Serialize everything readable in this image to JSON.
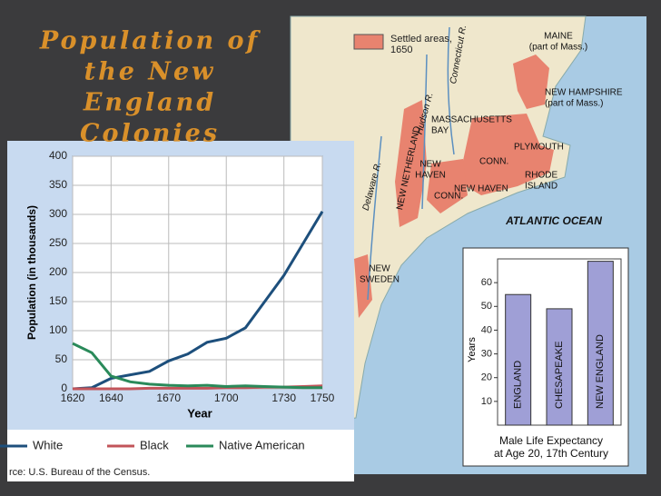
{
  "slide": {
    "title": [
      "Population of",
      "the New",
      "England",
      "Colonies"
    ]
  },
  "map": {
    "legend": [
      "Settled areas,",
      "1650"
    ],
    "labels": [
      [
        "MAINE",
        "(part of Mass.)"
      ],
      [
        "NEW HAMPSHIRE",
        "(part of Mass.)"
      ],
      [
        "MASSACHUSETTS",
        "BAY"
      ],
      [
        "PLYMOUTH"
      ],
      [
        "CONN."
      ],
      [
        "RHODE",
        "ISLAND"
      ],
      [
        "NEW",
        "HAVEN"
      ],
      [
        "NEW HAVEN"
      ],
      [
        "CONN."
      ],
      [
        "NEW NETHERLAND"
      ],
      [
        "Hudson R."
      ],
      [
        "Connecticut R."
      ],
      [
        "Delaware R."
      ],
      [
        "ATLANTIC OCEAN"
      ],
      [
        "NEW",
        "SWEDEN"
      ]
    ]
  },
  "chart_data": [
    {
      "type": "line",
      "x_label": "Year",
      "y_label": "Population (in thousands)",
      "x": [
        1620,
        1630,
        1640,
        1650,
        1660,
        1670,
        1680,
        1690,
        1700,
        1710,
        1720,
        1730,
        1740,
        1750
      ],
      "series": [
        {
          "name": "White",
          "color": "#1d4f7c",
          "values": [
            0,
            2,
            18,
            24,
            30,
            48,
            60,
            80,
            87,
            105,
            150,
            195,
            250,
            305
          ]
        },
        {
          "name": "Black",
          "color": "#c2545a",
          "values": [
            0,
            0,
            0,
            0,
            1,
            1,
            1,
            1,
            2,
            2,
            3,
            3,
            4,
            5
          ]
        },
        {
          "name": "Native American",
          "color": "#2a8a5a",
          "values": [
            78,
            62,
            22,
            12,
            8,
            6,
            5,
            6,
            4,
            5,
            4,
            3,
            2,
            2
          ]
        }
      ],
      "xlim": [
        1620,
        1750
      ],
      "xticks": [
        1620,
        1640,
        1670,
        1700,
        1730,
        1750
      ],
      "ylim": [
        0,
        400
      ],
      "yticks": [
        0,
        50,
        100,
        150,
        200,
        250,
        300,
        350,
        400
      ],
      "grid": true,
      "source": "rce: U.S. Bureau of the Census."
    },
    {
      "type": "bar",
      "y_label": "Years",
      "caption": [
        "Male Life Expectancy",
        "at Age 20, 17th Century"
      ],
      "categories": [
        "ENGLAND",
        "CHESAPEAKE",
        "NEW ENGLAND"
      ],
      "values": [
        55,
        49,
        69
      ],
      "color": "#9f9fd6",
      "ylim": [
        0,
        70
      ],
      "yticks": [
        10,
        20,
        30,
        40,
        50,
        60
      ]
    }
  ]
}
